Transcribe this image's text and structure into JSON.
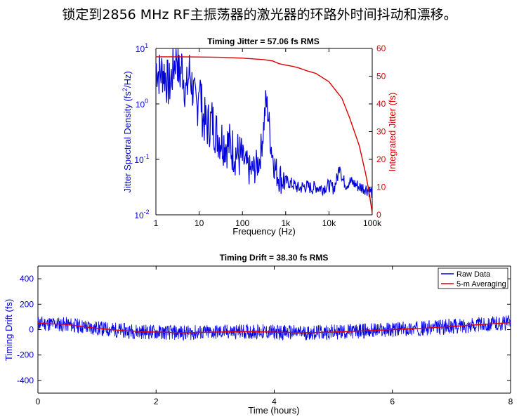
{
  "caption": "锁定到2856 MHz RF主振荡器的激光器的环路外时间抖动和漂移。",
  "chart_data": [
    {
      "type": "line",
      "title": "Timing Jitter = 57.06 fs RMS",
      "xlabel": "Frequency (Hz)",
      "ylabel": "Jitter Spectral Density (fs²/Hz)",
      "ylabel_parts": [
        "Jitter Spectral Density (fs",
        "2",
        "/Hz)"
      ],
      "y2label": "Integrated Jitter (fs)",
      "xscale": "log",
      "yscale": "log",
      "xlim": [
        1,
        100000
      ],
      "ylim": [
        0.01,
        10
      ],
      "y2lim": [
        0,
        60
      ],
      "x_ticks": [
        1,
        10,
        100,
        1000,
        10000,
        100000
      ],
      "x_tick_labels": [
        "1",
        "10",
        "100",
        "1k",
        "10k",
        "100k"
      ],
      "y_tick_labels": [
        {
          "base": "10",
          "exp": "1",
          "value": 10
        },
        {
          "base": "10",
          "exp": "0",
          "value": 1
        },
        {
          "base": "10",
          "exp": "-1",
          "value": 0.1
        },
        {
          "base": "10",
          "exp": "-2",
          "value": 0.01
        }
      ],
      "y2_ticks": [
        0,
        10,
        20,
        30,
        40,
        50,
        60
      ],
      "y2_tick_labels": [
        "0",
        "10",
        "20",
        "30",
        "40",
        "50",
        "60"
      ],
      "colors": {
        "psd": "#0000dd",
        "integrated": "#dd0000",
        "left_axis": "#0000dd",
        "right_axis": "#dd0000"
      },
      "series": [
        {
          "axis": "left",
          "color": "#0000dd",
          "x": [
            1,
            1.2,
            1.5,
            2,
            2.5,
            3,
            3.5,
            4,
            5,
            6,
            7,
            8,
            9,
            10,
            12,
            15,
            20,
            25,
            30,
            40,
            50,
            60,
            80,
            100,
            120,
            150,
            200,
            250,
            300,
            350,
            400,
            450,
            500,
            550,
            600,
            700,
            800,
            1000,
            1500,
            2000,
            3000,
            4000,
            5000,
            7000,
            10000,
            13000,
            16000,
            18000,
            20000,
            25000,
            30000,
            40000,
            50000,
            70000,
            100000
          ],
          "values": [
            5,
            3.5,
            4,
            2,
            4,
            9,
            3,
            5,
            1.5,
            4,
            2,
            1,
            0.8,
            3,
            0.6,
            0.4,
            0.5,
            0.3,
            0.25,
            0.2,
            0.18,
            0.15,
            0.12,
            0.1,
            0.08,
            0.06,
            0.07,
            0.1,
            0.3,
            1.2,
            0.6,
            0.2,
            0.12,
            0.08,
            0.06,
            0.05,
            0.045,
            0.04,
            0.035,
            0.03,
            0.033,
            0.03,
            0.032,
            0.03,
            0.034,
            0.03,
            0.05,
            0.09,
            0.045,
            0.035,
            0.04,
            0.036,
            0.032,
            0.03,
            0.025
          ]
        },
        {
          "axis": "right",
          "color": "#dd0000",
          "x": [
            1,
            3,
            10,
            30,
            100,
            300,
            500,
            700,
            1000,
            1500,
            2000,
            3000,
            5000,
            10000,
            20000,
            30000,
            50000,
            70000,
            85000,
            95000,
            100000
          ],
          "values": [
            57,
            57,
            56.9,
            56.8,
            56.5,
            56,
            55.5,
            54.5,
            54,
            53.5,
            53,
            52,
            51,
            48,
            42,
            35,
            25,
            15,
            8,
            3,
            0.5
          ]
        }
      ]
    },
    {
      "type": "line",
      "title": "Timing Drift = 38.30 fs RMS",
      "xlabel": "Time (hours)",
      "ylabel": "Timing Drift (fs)",
      "xlim": [
        0,
        8
      ],
      "ylim": [
        -500,
        500
      ],
      "x_ticks": [
        0,
        2,
        4,
        6,
        8
      ],
      "x_tick_labels": [
        "0",
        "2",
        "4",
        "6",
        "8"
      ],
      "y_ticks": [
        -400,
        -200,
        0,
        200,
        400
      ],
      "y_tick_labels": [
        "-400",
        "-200",
        "0",
        "200",
        "400"
      ],
      "legend": "top-right",
      "colors": {
        "raw": "#0000ee",
        "avg": "#dd0000",
        "axis": "#0000cc"
      },
      "series": [
        {
          "name": "Raw Data",
          "color": "#0000ee",
          "x": [
            0,
            0.5,
            1,
            1.5,
            2,
            2.5,
            3,
            3.5,
            4,
            4.5,
            5,
            5.5,
            6,
            6.5,
            7,
            7.5,
            8
          ],
          "values": [
            50,
            40,
            10,
            -10,
            -20,
            -25,
            -20,
            -15,
            -20,
            -25,
            -20,
            -10,
            0,
            10,
            25,
            40,
            55
          ],
          "noise_band": 60
        },
        {
          "name": "5-m Averaging",
          "color": "#dd0000",
          "x": [
            0,
            0.5,
            1,
            1.5,
            2,
            2.5,
            3,
            3.5,
            4,
            4.5,
            5,
            5.5,
            6,
            6.5,
            7,
            7.5,
            8
          ],
          "values": [
            50,
            40,
            10,
            -10,
            -20,
            -25,
            -20,
            -15,
            -20,
            -25,
            -20,
            -10,
            0,
            10,
            25,
            40,
            55
          ]
        }
      ]
    }
  ]
}
